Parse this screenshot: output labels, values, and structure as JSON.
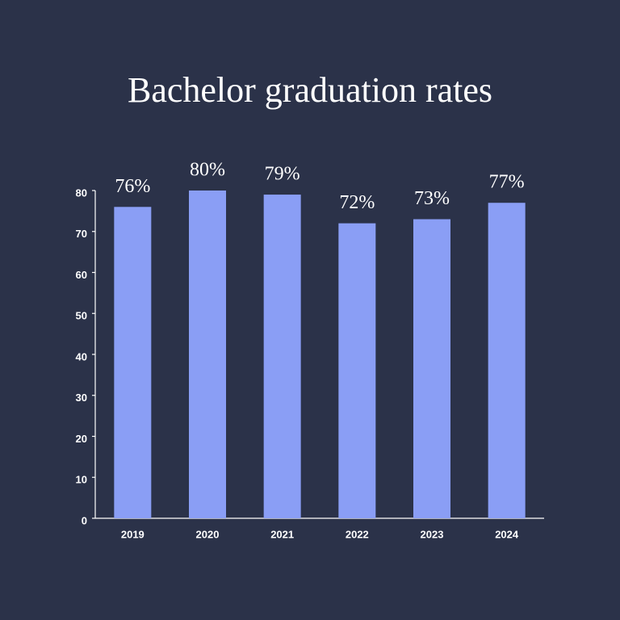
{
  "chart_data": {
    "type": "bar",
    "title": "Bachelor graduation rates",
    "categories": [
      "2019",
      "2020",
      "2021",
      "2022",
      "2023",
      "2024"
    ],
    "values": [
      76,
      80,
      79,
      72,
      73,
      77
    ],
    "value_labels": [
      "76%",
      "80%",
      "79%",
      "72%",
      "73%",
      "77%"
    ],
    "color": "#8a9ef5",
    "ylim": [
      0,
      80
    ],
    "yticks": [
      0,
      10,
      20,
      30,
      40,
      50,
      60,
      70,
      80
    ],
    "grid": false
  }
}
